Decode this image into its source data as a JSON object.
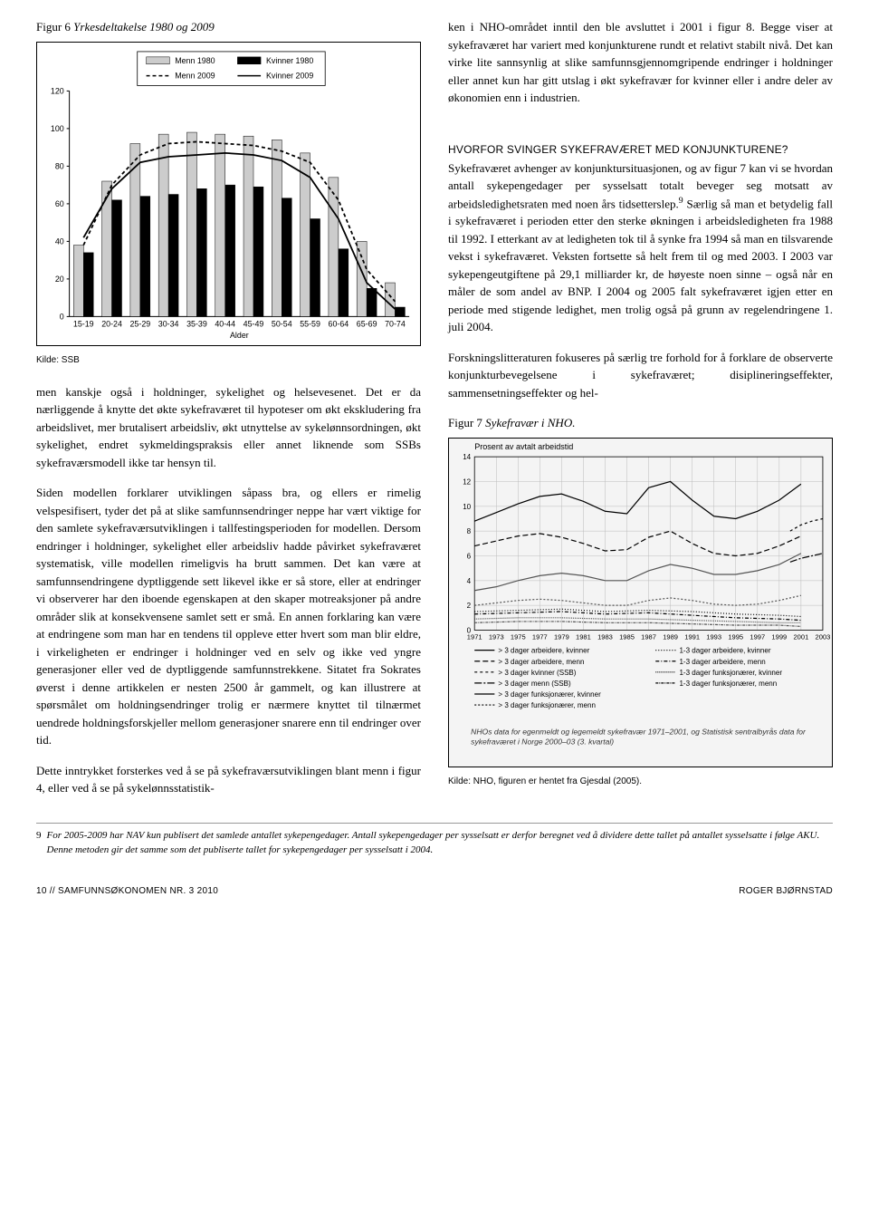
{
  "figure6": {
    "title_prefix": "Figur 6",
    "title_name": "Yrkesdeltakelse 1980 og 2009",
    "source": "Kilde: SSB",
    "type": "bar-with-lines",
    "background_color": "#ffffff",
    "legend": {
      "items": [
        {
          "label": "Menn 1980",
          "swatch": "bar",
          "fill": "#cccccc"
        },
        {
          "label": "Kvinner 1980",
          "swatch": "bar",
          "fill": "#000000"
        },
        {
          "label": "Menn 2009",
          "swatch": "line",
          "dash": "4 3",
          "stroke": "#000000"
        },
        {
          "label": "Kvinner 2009",
          "swatch": "line",
          "dash": "",
          "stroke": "#000000"
        }
      ]
    },
    "x_label": "Alder",
    "x_categories": [
      "15-19",
      "20-24",
      "25-29",
      "30-34",
      "35-39",
      "40-44",
      "45-49",
      "50-54",
      "55-59",
      "60-64",
      "65-69",
      "70-74"
    ],
    "y_ticks": [
      0,
      20,
      40,
      60,
      80,
      100,
      120
    ],
    "ylim": [
      0,
      120
    ],
    "series": {
      "menn1980_bar": {
        "color": "#cccccc",
        "values": [
          38,
          72,
          92,
          97,
          98,
          97,
          96,
          94,
          87,
          74,
          40,
          18
        ]
      },
      "kvinn1980_bar": {
        "color": "#000000",
        "values": [
          34,
          62,
          64,
          65,
          68,
          70,
          69,
          63,
          52,
          36,
          15,
          5
        ]
      },
      "menn2009_line": {
        "stroke": "#000000",
        "dash": "4 3",
        "values": [
          38,
          70,
          86,
          92,
          93,
          92,
          91,
          88,
          82,
          62,
          25,
          8
        ]
      },
      "kvinn2009_line": {
        "stroke": "#000000",
        "dash": "",
        "values": [
          42,
          68,
          82,
          85,
          86,
          87,
          86,
          83,
          74,
          52,
          18,
          4
        ]
      }
    },
    "axis_fontsize": 9,
    "grid_color": "#999999"
  },
  "figure7": {
    "title_prefix": "Figur 7",
    "title_name": "Sykefravær i NHO.",
    "source": "Kilde: NHO, figuren er hentet fra Gjesdal (2005).",
    "type": "multi-line",
    "background_color": "#f4f4f4",
    "y_label": "Prosent av avtalt arbeidstid",
    "y_ticks": [
      0,
      2,
      4,
      6,
      8,
      10,
      12,
      14
    ],
    "ylim": [
      0,
      14
    ],
    "x_ticks": [
      1971,
      1973,
      1975,
      1977,
      1979,
      1981,
      1983,
      1985,
      1987,
      1989,
      1991,
      1993,
      1995,
      1997,
      1999,
      2001,
      2003
    ],
    "xlim": [
      1971,
      2003
    ],
    "legend_items": [
      {
        "label": "> 3 dager arbeidere, kvinner",
        "dash": ""
      },
      {
        "label": "> 3 dager arbeidere, menn",
        "dash": "6 3"
      },
      {
        "label": "> 3 dager kvinner (SSB)",
        "dash": "3 3"
      },
      {
        "label": "> 3 dager menn (SSB)",
        "dash": "8 2 2 2"
      },
      {
        "label": "> 3 dager funksjonærer, kvinner",
        "dash": ""
      },
      {
        "label": "> 3 dager funksjonærer, menn",
        "dash": "2 2"
      },
      {
        "label": "1-3 dager arbeidere, kvinner",
        "dash": "1 2"
      },
      {
        "label": "1-3 dager arbeidere, menn",
        "dash": "4 2 1 2"
      },
      {
        "label": "1-3 dager funksjonærer, kvinner",
        "dash": "1 1"
      },
      {
        "label": "1-3 dager funksjonærer, menn",
        "dash": "3 1 1 1"
      }
    ],
    "series": [
      {
        "name": "arb_kv_gt3",
        "dash": "",
        "stroke": "#000",
        "points": [
          [
            1971,
            8.8
          ],
          [
            1973,
            9.5
          ],
          [
            1975,
            10.2
          ],
          [
            1977,
            10.8
          ],
          [
            1979,
            11.0
          ],
          [
            1981,
            10.4
          ],
          [
            1983,
            9.6
          ],
          [
            1985,
            9.4
          ],
          [
            1987,
            11.5
          ],
          [
            1989,
            12.0
          ],
          [
            1991,
            10.5
          ],
          [
            1993,
            9.2
          ],
          [
            1995,
            9.0
          ],
          [
            1997,
            9.6
          ],
          [
            1999,
            10.5
          ],
          [
            2001,
            11.8
          ]
        ]
      },
      {
        "name": "arb_m_gt3",
        "dash": "6 3",
        "stroke": "#000",
        "points": [
          [
            1971,
            6.8
          ],
          [
            1973,
            7.2
          ],
          [
            1975,
            7.6
          ],
          [
            1977,
            7.8
          ],
          [
            1979,
            7.5
          ],
          [
            1981,
            7.0
          ],
          [
            1983,
            6.4
          ],
          [
            1985,
            6.5
          ],
          [
            1987,
            7.5
          ],
          [
            1989,
            8.0
          ],
          [
            1991,
            7.0
          ],
          [
            1993,
            6.2
          ],
          [
            1995,
            6.0
          ],
          [
            1997,
            6.2
          ],
          [
            1999,
            6.8
          ],
          [
            2001,
            7.6
          ]
        ]
      },
      {
        "name": "funk_kv_gt3",
        "dash": "",
        "stroke": "#555",
        "points": [
          [
            1971,
            3.2
          ],
          [
            1973,
            3.5
          ],
          [
            1975,
            4.0
          ],
          [
            1977,
            4.4
          ],
          [
            1979,
            4.6
          ],
          [
            1981,
            4.4
          ],
          [
            1983,
            4.0
          ],
          [
            1985,
            4.0
          ],
          [
            1987,
            4.8
          ],
          [
            1989,
            5.3
          ],
          [
            1991,
            5.0
          ],
          [
            1993,
            4.5
          ],
          [
            1995,
            4.5
          ],
          [
            1997,
            4.8
          ],
          [
            1999,
            5.3
          ],
          [
            2001,
            6.2
          ]
        ]
      },
      {
        "name": "funk_m_gt3",
        "dash": "2 2",
        "stroke": "#555",
        "points": [
          [
            1971,
            2.0
          ],
          [
            1973,
            2.2
          ],
          [
            1975,
            2.4
          ],
          [
            1977,
            2.5
          ],
          [
            1979,
            2.4
          ],
          [
            1981,
            2.2
          ],
          [
            1983,
            2.0
          ],
          [
            1985,
            2.0
          ],
          [
            1987,
            2.4
          ],
          [
            1989,
            2.6
          ],
          [
            1991,
            2.4
          ],
          [
            1993,
            2.1
          ],
          [
            1995,
            2.0
          ],
          [
            1997,
            2.1
          ],
          [
            1999,
            2.4
          ],
          [
            2001,
            2.8
          ]
        ]
      },
      {
        "name": "ssb_kv",
        "dash": "3 3",
        "stroke": "#000",
        "points": [
          [
            2000,
            8.0
          ],
          [
            2001,
            8.5
          ],
          [
            2002,
            8.8
          ],
          [
            2003,
            9.0
          ]
        ]
      },
      {
        "name": "ssb_m",
        "dash": "8 2 2 2",
        "stroke": "#000",
        "points": [
          [
            2000,
            5.5
          ],
          [
            2001,
            5.8
          ],
          [
            2002,
            6.0
          ],
          [
            2003,
            6.2
          ]
        ]
      },
      {
        "name": "arb_kv_13",
        "dash": "1 2",
        "stroke": "#000",
        "points": [
          [
            1971,
            1.5
          ],
          [
            1975,
            1.6
          ],
          [
            1979,
            1.7
          ],
          [
            1983,
            1.5
          ],
          [
            1987,
            1.6
          ],
          [
            1991,
            1.5
          ],
          [
            1995,
            1.3
          ],
          [
            1999,
            1.2
          ],
          [
            2001,
            1.1
          ]
        ]
      },
      {
        "name": "arb_m_13",
        "dash": "4 2 1 2",
        "stroke": "#000",
        "points": [
          [
            1971,
            1.3
          ],
          [
            1975,
            1.4
          ],
          [
            1979,
            1.5
          ],
          [
            1983,
            1.3
          ],
          [
            1987,
            1.4
          ],
          [
            1991,
            1.2
          ],
          [
            1995,
            1.0
          ],
          [
            1999,
            0.9
          ],
          [
            2001,
            0.8
          ]
        ]
      },
      {
        "name": "funk_kv_13",
        "dash": "1 1",
        "stroke": "#555",
        "points": [
          [
            1971,
            0.9
          ],
          [
            1975,
            1.0
          ],
          [
            1979,
            1.0
          ],
          [
            1983,
            0.9
          ],
          [
            1987,
            0.9
          ],
          [
            1991,
            0.8
          ],
          [
            1995,
            0.7
          ],
          [
            1999,
            0.6
          ],
          [
            2001,
            0.6
          ]
        ]
      },
      {
        "name": "funk_m_13",
        "dash": "3 1 1 1",
        "stroke": "#555",
        "points": [
          [
            1971,
            0.6
          ],
          [
            1975,
            0.7
          ],
          [
            1979,
            0.7
          ],
          [
            1983,
            0.6
          ],
          [
            1987,
            0.6
          ],
          [
            1991,
            0.5
          ],
          [
            1995,
            0.4
          ],
          [
            1999,
            0.4
          ],
          [
            2001,
            0.3
          ]
        ]
      }
    ],
    "note": "NHOs data for egenmeldt og legemeldt sykefravær 1971–2001, og Statistisk sentralbyrås data for sykefraværet i Norge 2000–03 (3. kvartal)",
    "grid_color": "#bbbbbb"
  },
  "text": {
    "col1_p1": "men kanskje også i holdninger, sykelighet og helsevesenet. Det er da nærliggende å knytte det økte sykefraværet til hypoteser om økt ekskludering fra arbeidslivet, mer brutalisert arbeidsliv, økt utnyttelse av sykelønnsordningen, økt sykelighet, endret sykmeldingspraksis eller annet liknende som SSBs sykefraværsmodell ikke tar hensyn til.",
    "col1_p2": "Siden modellen forklarer utviklingen såpass bra, og ellers er rimelig velspesifisert, tyder det på at slike samfunnsendringer neppe har vært viktige for den samlete sykefraværsutviklingen i tallfestingsperioden for modellen. Dersom endringer i holdninger, sykelighet eller arbeidsliv hadde påvirket sykefraværet systematisk, ville modellen rimeligvis ha brutt sammen. Det kan være at samfunnsendringene dyptliggende sett likevel ikke er så store, eller at endringer vi observerer har den iboende egenskapen at den skaper motreaksjoner på andre områder slik at konsekvensene samlet sett er små. En annen forklaring kan være at endringene som man har en tendens til oppleve etter hvert som man blir eldre, i virkeligheten er endringer i holdninger ved en selv og ikke ved yngre generasjoner eller ved de dyptliggende samfunnstrekkene. Sitatet fra Sokrates øverst i denne artikkelen er nesten 2500 år gammelt, og kan illustrere at spørsmålet om holdningsendringer trolig er nærmere knyttet til tilnærmet uendrede holdningsforskjeller mellom generasjoner snarere enn til endringer over tid.",
    "col1_p3": "Dette inntrykket forsterkes ved å se på sykefraværsutviklingen blant menn i figur 4, eller ved å se på sykelønnsstatistik-",
    "col2_p1": "ken i NHO-området inntil den ble avsluttet i 2001 i figur 8. Begge viser at sykefraværet har variert med konjunkturene rundt et relativt stabilt nivå. Det kan virke lite sannsynlig at slike samfunnsgjennomgripende endringer i holdninger eller annet kun har gitt utslag i økt sykefravær for kvinner eller i andre deler av økonomien enn i industrien.",
    "col2_head": "HVORFOR SVINGER SYKEFRAVÆRET MED KONJUNKTURENE?",
    "col2_p2a": "Sykefraværet avhenger av konjunktursituasjonen, og av figur 7 kan vi se hvordan antall sykepengedager per sysselsatt totalt beveger seg motsatt av arbeidsledighetsraten med noen års tidsetterslep.",
    "col2_p2b": " Særlig så man et betydelig fall i sykefraværet i perioden etter den sterke økningen i arbeidsledigheten fra 1988 til 1992. I etterkant av at ledigheten tok til å synke fra 1994 så man en tilsvarende vekst i sykefraværet. Veksten fortsette så helt frem til og med 2003. I 2003 var sykepengeutgiftene på 29,1 milliarder kr, de høyeste noen sinne – også når en måler de som andel av BNP. I 2004 og 2005 falt sykefraværet igjen etter en periode med stigende ledighet, men trolig også på grunn av regelendringene 1. juli 2004.",
    "col2_p3": "Forskningslitteraturen fokuseres på særlig tre forhold for å forklare de observerte konjunkturbevegelsene i sykefraværet; disiplineringseffekter, sammensetningseffekter og hel-"
  },
  "footnote": {
    "marker": "9",
    "text": "For 2005-2009 har NAV kun publisert det samlede antallet sykepengedager. Antall sykepengedager per sysselsatt er derfor beregnet ved å dividere dette tallet på antallet sysselsatte i følge AKU. Denne metoden gir det samme som det publiserte tallet for sykepengedager per sysselsatt i 2004."
  },
  "footer": {
    "left": "10 // SAMFUNNSØKONOMEN NR. 3 2010",
    "right": "ROGER BJØRNSTAD"
  }
}
